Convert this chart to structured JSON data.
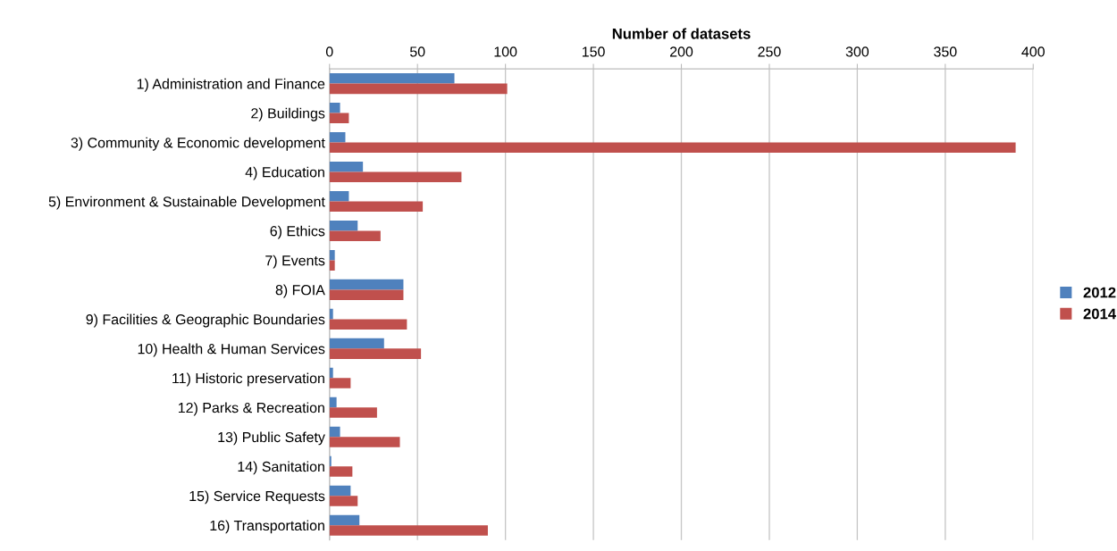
{
  "chart_data": {
    "type": "bar",
    "orientation": "horizontal",
    "xlabel": "Number of datasets",
    "categories": [
      "1) Administration and Finance",
      "2) Buildings",
      "3) Community & Economic development",
      "4) Education",
      "5) Environment & Sustainable Development",
      "6) Ethics",
      "7) Events",
      "8) FOIA",
      "9) Facilities & Geographic Boundaries",
      "10) Health & Human Services",
      "11) Historic preservation",
      "12) Parks & Recreation",
      "13) Public Safety",
      "14) Sanitation",
      "15) Service Requests",
      "16) Transportation"
    ],
    "series": [
      {
        "name": "2012",
        "color": "#4f81bd",
        "values": [
          71,
          6,
          9,
          19,
          11,
          16,
          3,
          42,
          2,
          31,
          2,
          4,
          6,
          1,
          12,
          17
        ]
      },
      {
        "name": "2014",
        "color": "#c0504d",
        "values": [
          101,
          11,
          390,
          75,
          53,
          29,
          3,
          42,
          44,
          52,
          12,
          27,
          40,
          13,
          16,
          90
        ]
      }
    ],
    "xlim": [
      0,
      400
    ],
    "xticks": [
      0,
      50,
      100,
      150,
      200,
      250,
      300,
      350,
      400
    ],
    "grid": "x",
    "legend": "right"
  }
}
